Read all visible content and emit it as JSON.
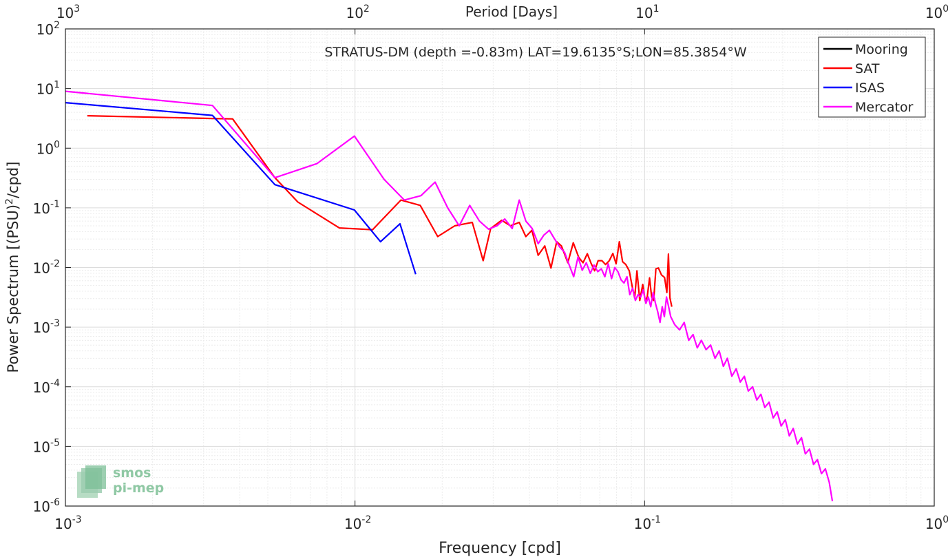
{
  "chart_data": {
    "type": "line",
    "title": "STRATUS-DM (depth =-0.83m) LAT=19.6135°S;LON=85.3854°W",
    "xlabel": "Frequency [cpd]",
    "ylabel_main": "Power Spectrum [(PSU)",
    "ylabel_sup": "2",
    "ylabel_tail": "/cpd]",
    "top_xlabel": "Period [Days]",
    "x_scale": "log",
    "y_scale": "log",
    "xlim": [
      0.001,
      1
    ],
    "ylim": [
      1e-06,
      100
    ],
    "grid": true,
    "legend_position": "top-right",
    "x_ticks": [
      {
        "value": 0.001,
        "base": "10",
        "exp": "-3"
      },
      {
        "value": 0.01,
        "base": "10",
        "exp": "-2"
      },
      {
        "value": 0.1,
        "base": "10",
        "exp": "-1"
      },
      {
        "value": 1,
        "base": "10",
        "exp": "0"
      }
    ],
    "top_ticks": [
      {
        "freq": 0.001,
        "base": "10",
        "exp": "3"
      },
      {
        "freq": 0.01,
        "base": "10",
        "exp": "2"
      },
      {
        "freq": 0.1,
        "base": "10",
        "exp": "1"
      },
      {
        "freq": 1,
        "base": "10",
        "exp": "0"
      }
    ],
    "y_ticks": [
      {
        "value": 100,
        "base": "10",
        "exp": "2"
      },
      {
        "value": 10,
        "base": "10",
        "exp": "1"
      },
      {
        "value": 1,
        "base": "10",
        "exp": "0"
      },
      {
        "value": 0.1,
        "base": "10",
        "exp": "-1"
      },
      {
        "value": 0.01,
        "base": "10",
        "exp": "-2"
      },
      {
        "value": 0.001,
        "base": "10",
        "exp": "-3"
      },
      {
        "value": 0.0001,
        "base": "10",
        "exp": "-4"
      },
      {
        "value": 1e-05,
        "base": "10",
        "exp": "-5"
      },
      {
        "value": 1e-06,
        "base": "10",
        "exp": "-6"
      }
    ],
    "series": [
      {
        "name": "Mooring",
        "color": "#000000",
        "x": [],
        "y": []
      },
      {
        "name": "SAT",
        "color": "#ff0000",
        "x": [
          0.00119,
          0.00322,
          0.00378,
          0.00529,
          0.00635,
          0.00883,
          0.0115,
          0.0144,
          0.0168,
          0.0193,
          0.0221,
          0.0244,
          0.0254,
          0.0277,
          0.0294,
          0.0321,
          0.0344,
          0.0369,
          0.0389,
          0.0408,
          0.0429,
          0.0452,
          0.0475,
          0.0497,
          0.0516,
          0.0543,
          0.0567,
          0.0592,
          0.0613,
          0.0634,
          0.0653,
          0.0672,
          0.0691,
          0.0712,
          0.0733,
          0.0755,
          0.0777,
          0.0797,
          0.0818,
          0.0839,
          0.0861,
          0.0885,
          0.0906,
          0.0924,
          0.0941,
          0.0962,
          0.0985,
          0.1004,
          0.1021,
          0.104,
          0.1057,
          0.1075,
          0.1094,
          0.1116,
          0.1143,
          0.1172,
          0.1193,
          0.1208,
          0.1223,
          0.1241
        ],
        "y": [
          3.5,
          3.15,
          3.1,
          0.32,
          0.125,
          0.046,
          0.043,
          0.135,
          0.11,
          0.033,
          0.05,
          0.055,
          0.057,
          0.013,
          0.045,
          0.062,
          0.05,
          0.057,
          0.033,
          0.042,
          0.016,
          0.023,
          0.0098,
          0.027,
          0.023,
          0.012,
          0.026,
          0.0148,
          0.012,
          0.017,
          0.0118,
          0.0088,
          0.013,
          0.013,
          0.0112,
          0.013,
          0.0172,
          0.0115,
          0.027,
          0.0125,
          0.0112,
          0.0088,
          0.0048,
          0.0031,
          0.0088,
          0.0028,
          0.0052,
          0.0028,
          0.0032,
          0.0067,
          0.0032,
          0.0028,
          0.0095,
          0.0098,
          0.0075,
          0.0068,
          0.0038,
          0.0168,
          0.0031,
          0.0022
        ]
      },
      {
        "name": "ISAS",
        "color": "#0000ff",
        "x": [
          0.001,
          0.00322,
          0.00529,
          0.00995,
          0.01225,
          0.0143,
          0.0162
        ],
        "y": [
          5.8,
          3.55,
          0.245,
          0.092,
          0.027,
          0.054,
          0.0077
        ]
      },
      {
        "name": "Mercator",
        "color": "#ff00ff",
        "x": [
          0.001,
          0.00322,
          0.00529,
          0.00738,
          0.00995,
          0.0126,
          0.0148,
          0.0169,
          0.0189,
          0.0209,
          0.0229,
          0.0249,
          0.0269,
          0.0289,
          0.0309,
          0.0329,
          0.0349,
          0.0369,
          0.0389,
          0.0409,
          0.0429,
          0.0449,
          0.0469,
          0.0489,
          0.0509,
          0.0529,
          0.0549,
          0.0569,
          0.0589,
          0.0609,
          0.0629,
          0.0649,
          0.0669,
          0.0689,
          0.0709,
          0.0729,
          0.0749,
          0.0769,
          0.0789,
          0.0809,
          0.0829,
          0.0849,
          0.0869,
          0.0889,
          0.0909,
          0.0929,
          0.0949,
          0.0969,
          0.0989,
          0.101,
          0.103,
          0.105,
          0.107,
          0.109,
          0.111,
          0.113,
          0.115,
          0.117,
          0.119,
          0.121,
          0.123,
          0.127,
          0.132,
          0.137,
          0.142,
          0.147,
          0.152,
          0.157,
          0.163,
          0.169,
          0.175,
          0.181,
          0.187,
          0.193,
          0.2,
          0.207,
          0.214,
          0.221,
          0.228,
          0.236,
          0.244,
          0.252,
          0.26,
          0.269,
          0.278,
          0.287,
          0.296,
          0.306,
          0.316,
          0.326,
          0.337,
          0.348,
          0.359,
          0.371,
          0.383,
          0.395,
          0.408,
          0.421,
          0.434,
          0.445
        ],
        "y": [
          9,
          5.2,
          0.32,
          0.55,
          1.6,
          0.3,
          0.135,
          0.16,
          0.27,
          0.1,
          0.05,
          0.11,
          0.06,
          0.044,
          0.05,
          0.065,
          0.045,
          0.135,
          0.06,
          0.045,
          0.025,
          0.035,
          0.042,
          0.03,
          0.022,
          0.018,
          0.011,
          0.007,
          0.015,
          0.009,
          0.012,
          0.008,
          0.011,
          0.0085,
          0.0095,
          0.007,
          0.0115,
          0.0065,
          0.01,
          0.0085,
          0.0062,
          0.0055,
          0.007,
          0.0035,
          0.0045,
          0.0028,
          0.0035,
          0.0032,
          0.0042,
          0.0025,
          0.0032,
          0.0022,
          0.0038,
          0.0025,
          0.0018,
          0.0012,
          0.0022,
          0.0015,
          0.0032,
          0.0022,
          0.0015,
          0.0011,
          0.0009,
          0.0012,
          0.0006,
          0.00075,
          0.00045,
          0.0006,
          0.00042,
          0.0005,
          0.0003,
          0.0004,
          0.00022,
          0.0003,
          0.00015,
          0.0002,
          0.00012,
          0.00015,
          8.5e-05,
          0.0001,
          6e-05,
          7.5e-05,
          4.5e-05,
          5.5e-05,
          3e-05,
          3.8e-05,
          2.2e-05,
          2.8e-05,
          1.5e-05,
          2e-05,
          1.1e-05,
          1.4e-05,
          7.5e-06,
          9e-06,
          5e-06,
          6e-06,
          3.5e-06,
          4.2e-06,
          2.5e-06,
          1.2e-06
        ]
      }
    ]
  },
  "watermark": {
    "line1": "smos",
    "line2": "pi-mep"
  }
}
